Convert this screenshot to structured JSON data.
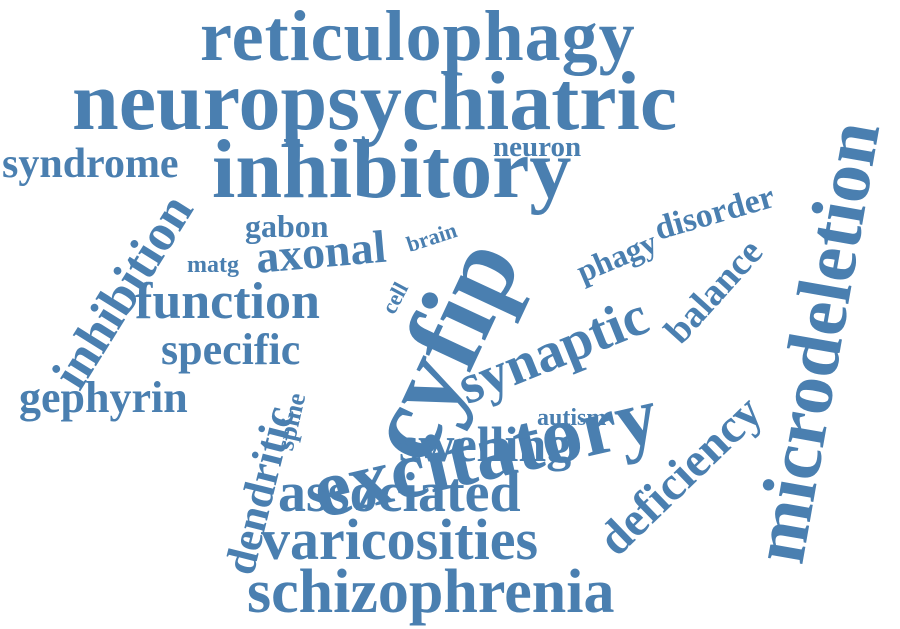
{
  "word_color": "#4a7fb0",
  "background": "#ffffff",
  "words": [
    {
      "id": "reticulophagy",
      "text": "reticulophagy"
    },
    {
      "id": "neuropsychiatric",
      "text": "neuropsychiatric"
    },
    {
      "id": "syndrome",
      "text": "syndrome"
    },
    {
      "id": "inhibitory",
      "text": "inhibitory"
    },
    {
      "id": "neuron",
      "text": "neuron"
    },
    {
      "id": "disorder",
      "text": "disorder"
    },
    {
      "id": "microdeletion",
      "text": "microdeletion"
    },
    {
      "id": "inhibition",
      "text": "inhibition"
    },
    {
      "id": "gabon",
      "text": "gabon"
    },
    {
      "id": "brain",
      "text": "brain"
    },
    {
      "id": "cyfip",
      "text": "cyfip"
    },
    {
      "id": "phagy",
      "text": "phagy"
    },
    {
      "id": "balance",
      "text": "balance"
    },
    {
      "id": "matg",
      "text": "matg"
    },
    {
      "id": "axonal",
      "text": "axonal"
    },
    {
      "id": "cell",
      "text": "cell"
    },
    {
      "id": "function",
      "text": "function"
    },
    {
      "id": "synaptic",
      "text": "synaptic"
    },
    {
      "id": "specific",
      "text": "specific"
    },
    {
      "id": "excitatory",
      "text": "excitatory"
    },
    {
      "id": "gephyrin",
      "text": "gephyrin"
    },
    {
      "id": "spine",
      "text": "spine"
    },
    {
      "id": "dendritic",
      "text": "dendritic"
    },
    {
      "id": "deficiency",
      "text": "deficiency"
    },
    {
      "id": "autism",
      "text": "autism"
    },
    {
      "id": "swelling",
      "text": "swelling"
    },
    {
      "id": "associated",
      "text": "associated"
    },
    {
      "id": "varicosities",
      "text": "varicosities"
    },
    {
      "id": "schizophrenia",
      "text": "schizophrenia"
    }
  ]
}
